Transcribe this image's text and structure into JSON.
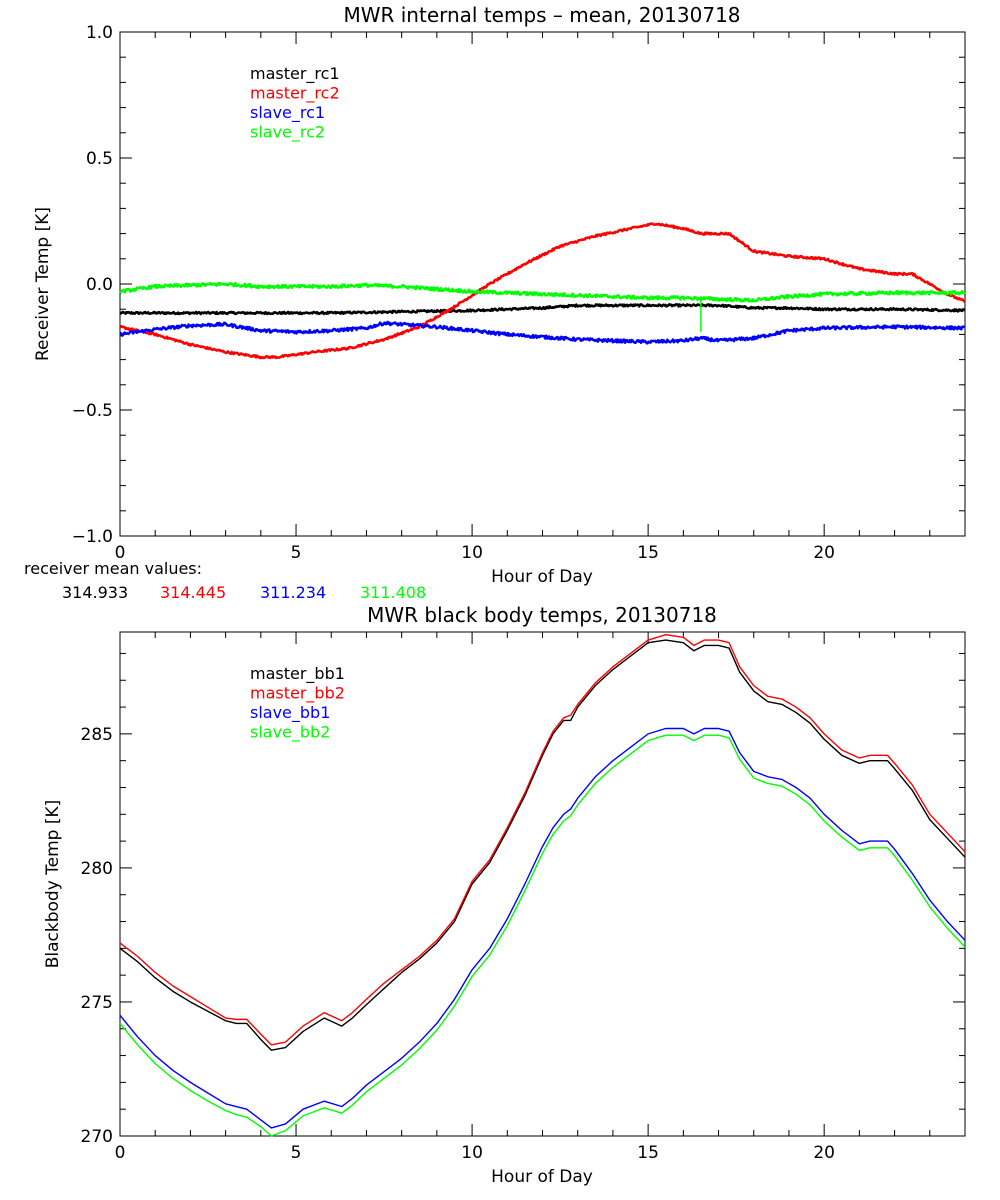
{
  "colors": {
    "black": "#000000",
    "red": "#ff0000",
    "blue": "#0000ff",
    "green": "#00ff00"
  },
  "chart_data": [
    {
      "type": "line",
      "title": "MWR internal temps – mean, 20130718",
      "xlabel": "Hour of Day",
      "ylabel": "Receiver Temp [K]",
      "xlim": [
        0,
        24
      ],
      "ylim": [
        -1.0,
        1.0
      ],
      "xticks": [
        0,
        5,
        10,
        15,
        20
      ],
      "yticks": [
        -1.0,
        -0.5,
        0.0,
        0.5,
        1.0
      ],
      "ytick_labels": [
        "−1.0",
        "−0.5",
        "0.0",
        "0.5",
        "1.0"
      ],
      "grid": false,
      "legend_position": "top-left",
      "series": [
        {
          "name": "master_rc1",
          "color": "#000000",
          "noise": 0.004,
          "x": [
            0,
            2,
            4,
            6,
            8,
            10,
            12,
            13,
            14,
            15,
            16,
            17,
            18,
            19,
            20,
            22,
            24
          ],
          "y": [
            -0.115,
            -0.115,
            -0.115,
            -0.115,
            -0.11,
            -0.105,
            -0.095,
            -0.085,
            -0.085,
            -0.085,
            -0.085,
            -0.085,
            -0.095,
            -0.095,
            -0.1,
            -0.1,
            -0.105
          ]
        },
        {
          "name": "master_rc2",
          "color": "#ff0000",
          "noise": 0.004,
          "x": [
            0,
            1,
            2,
            3,
            4,
            4.5,
            5.5,
            6.5,
            7.5,
            8.5,
            9.5,
            10.5,
            11.5,
            12.5,
            13.5,
            14.5,
            15.2,
            16,
            16.5,
            17.3,
            18,
            19,
            20,
            21,
            22,
            22.5,
            23.5,
            24
          ],
          "y": [
            -0.17,
            -0.2,
            -0.24,
            -0.27,
            -0.29,
            -0.29,
            -0.27,
            -0.255,
            -0.22,
            -0.17,
            -0.09,
            0.0,
            0.08,
            0.15,
            0.19,
            0.22,
            0.24,
            0.22,
            0.2,
            0.2,
            0.13,
            0.11,
            0.1,
            0.06,
            0.04,
            0.04,
            -0.04,
            -0.07
          ]
        },
        {
          "name": "slave_rc1",
          "color": "#0000ff",
          "noise": 0.006,
          "x": [
            0,
            1,
            2,
            3,
            4,
            5,
            6,
            7,
            7.5,
            8,
            9,
            10,
            11,
            12,
            13,
            14,
            15,
            16,
            16.5,
            17,
            18,
            19,
            20,
            22,
            24
          ],
          "y": [
            -0.2,
            -0.18,
            -0.165,
            -0.16,
            -0.185,
            -0.19,
            -0.185,
            -0.175,
            -0.155,
            -0.16,
            -0.17,
            -0.185,
            -0.2,
            -0.21,
            -0.22,
            -0.225,
            -0.23,
            -0.225,
            -0.215,
            -0.225,
            -0.215,
            -0.185,
            -0.175,
            -0.17,
            -0.175
          ]
        },
        {
          "name": "slave_rc2",
          "color": "#00ff00",
          "noise": 0.006,
          "x": [
            0,
            1,
            2,
            3,
            4,
            5,
            6,
            7,
            8,
            9,
            10,
            11,
            12,
            13,
            14,
            15,
            16,
            17,
            18,
            19,
            20,
            22,
            24
          ],
          "y": [
            -0.03,
            -0.01,
            -0.005,
            0.0,
            -0.01,
            -0.01,
            -0.01,
            -0.005,
            -0.01,
            -0.02,
            -0.03,
            -0.035,
            -0.04,
            -0.045,
            -0.05,
            -0.055,
            -0.055,
            -0.06,
            -0.065,
            -0.05,
            -0.04,
            -0.035,
            -0.035
          ]
        }
      ],
      "spike": {
        "series": "slave_rc2",
        "x": 16.5,
        "y_from": -0.055,
        "y_to": -0.19
      },
      "annotation": {
        "label": "receiver mean values:",
        "values": [
          {
            "text": "314.933",
            "color": "#000000"
          },
          {
            "text": "314.445",
            "color": "#ff0000"
          },
          {
            "text": "311.234",
            "color": "#0000ff"
          },
          {
            "text": "311.408",
            "color": "#00ff00"
          }
        ]
      }
    },
    {
      "type": "line",
      "title": "MWR black body temps, 20130718",
      "xlabel": "Hour of Day",
      "ylabel": "Blackbody Temp [K]",
      "xlim": [
        0,
        24
      ],
      "ylim": [
        270,
        288.8
      ],
      "xticks": [
        0,
        5,
        10,
        15,
        20
      ],
      "yticks": [
        270,
        275,
        280,
        285
      ],
      "ytick_labels": [
        "270",
        "275",
        "280",
        "285"
      ],
      "grid": false,
      "legend_position": "top-left",
      "series": [
        {
          "name": "master_bb1",
          "color": "#000000",
          "noise": 0,
          "x": [
            0,
            0.5,
            1,
            1.5,
            2,
            2.5,
            3,
            3.3,
            3.6,
            4.0,
            4.3,
            4.7,
            5.2,
            5.8,
            6.3,
            6.6,
            7.0,
            7.5,
            8.0,
            8.5,
            9.0,
            9.5,
            10.0,
            10.5,
            11.0,
            11.5,
            12.0,
            12.3,
            12.6,
            12.8,
            13.0,
            13.5,
            14.0,
            14.5,
            15.0,
            15.5,
            16.0,
            16.3,
            16.6,
            17.0,
            17.3,
            17.6,
            18.0,
            18.4,
            18.8,
            19.2,
            19.6,
            20.0,
            20.5,
            21.0,
            21.3,
            21.8,
            22.0,
            22.5,
            23.0,
            23.5,
            24.0
          ],
          "y": [
            277.0,
            276.5,
            275.9,
            275.4,
            275.0,
            274.65,
            274.3,
            274.2,
            274.2,
            273.6,
            273.2,
            273.3,
            273.9,
            274.4,
            274.1,
            274.4,
            274.9,
            275.5,
            276.1,
            276.6,
            277.2,
            278.0,
            279.4,
            280.2,
            281.4,
            282.7,
            284.2,
            285.0,
            285.5,
            285.5,
            286.0,
            286.8,
            287.4,
            287.9,
            288.4,
            288.5,
            288.4,
            288.1,
            288.3,
            288.3,
            288.2,
            287.3,
            286.6,
            286.2,
            286.1,
            285.8,
            285.4,
            284.8,
            284.2,
            283.9,
            284.0,
            284.0,
            283.7,
            282.9,
            281.8,
            281.1,
            280.4
          ]
        },
        {
          "name": "master_bb2",
          "color": "#ff0000",
          "noise": 0,
          "x": [
            0,
            0.5,
            1,
            1.5,
            2,
            2.5,
            3,
            3.3,
            3.6,
            4.0,
            4.3,
            4.7,
            5.2,
            5.8,
            6.3,
            6.6,
            7.0,
            7.5,
            8.0,
            8.5,
            9.0,
            9.5,
            10.0,
            10.5,
            11.0,
            11.5,
            12.0,
            12.3,
            12.6,
            12.8,
            13.0,
            13.5,
            14.0,
            14.5,
            15.0,
            15.5,
            16.0,
            16.3,
            16.6,
            17.0,
            17.3,
            17.6,
            18.0,
            18.4,
            18.8,
            19.2,
            19.6,
            20.0,
            20.5,
            21.0,
            21.3,
            21.8,
            22.0,
            22.5,
            23.0,
            23.5,
            24.0
          ],
          "y": [
            277.2,
            276.7,
            276.1,
            275.6,
            275.2,
            274.8,
            274.4,
            274.35,
            274.35,
            273.8,
            273.4,
            273.5,
            274.1,
            274.6,
            274.3,
            274.6,
            275.1,
            275.7,
            276.2,
            276.7,
            277.3,
            278.1,
            279.5,
            280.3,
            281.5,
            282.8,
            284.3,
            285.1,
            285.6,
            285.7,
            286.1,
            286.9,
            287.5,
            288.0,
            288.5,
            288.7,
            288.6,
            288.3,
            288.5,
            288.5,
            288.4,
            287.5,
            286.8,
            286.4,
            286.3,
            286.0,
            285.6,
            285.0,
            284.4,
            284.1,
            284.2,
            284.2,
            283.9,
            283.1,
            282.0,
            281.3,
            280.6
          ]
        },
        {
          "name": "slave_bb1",
          "color": "#0000ff",
          "noise": 0,
          "x": [
            0,
            0.5,
            1,
            1.5,
            2,
            2.5,
            3,
            3.3,
            3.6,
            4.0,
            4.3,
            4.7,
            5.2,
            5.8,
            6.3,
            6.6,
            7.0,
            7.5,
            8.0,
            8.5,
            9.0,
            9.5,
            10.0,
            10.5,
            11.0,
            11.5,
            12.0,
            12.3,
            12.6,
            12.8,
            13.0,
            13.5,
            14.0,
            14.5,
            15.0,
            15.5,
            16.0,
            16.3,
            16.6,
            17.0,
            17.3,
            17.6,
            18.0,
            18.4,
            18.8,
            19.2,
            19.6,
            20.0,
            20.5,
            21.0,
            21.3,
            21.8,
            22.0,
            22.5,
            23.0,
            23.5,
            24.0
          ],
          "y": [
            274.5,
            273.7,
            273.0,
            272.45,
            272.0,
            271.6,
            271.2,
            271.1,
            271.0,
            270.6,
            270.3,
            270.45,
            271.0,
            271.3,
            271.1,
            271.4,
            271.9,
            272.4,
            272.9,
            273.5,
            274.2,
            275.1,
            276.2,
            277.0,
            278.1,
            279.4,
            280.8,
            281.5,
            282.0,
            282.2,
            282.6,
            283.4,
            284.0,
            284.5,
            285.0,
            285.2,
            285.2,
            285.0,
            285.2,
            285.2,
            285.1,
            284.3,
            283.6,
            283.4,
            283.3,
            283.0,
            282.6,
            282.0,
            281.4,
            280.9,
            281.0,
            281.0,
            280.7,
            279.8,
            278.8,
            278.0,
            277.3
          ]
        },
        {
          "name": "slave_bb2",
          "color": "#00ff00",
          "noise": 0,
          "x": [
            0,
            0.5,
            1,
            1.5,
            2,
            2.5,
            3,
            3.3,
            3.6,
            4.0,
            4.3,
            4.7,
            5.2,
            5.8,
            6.3,
            6.6,
            7.0,
            7.5,
            8.0,
            8.5,
            9.0,
            9.5,
            10.0,
            10.5,
            11.0,
            11.5,
            12.0,
            12.3,
            12.6,
            12.8,
            13.0,
            13.5,
            14.0,
            14.5,
            15.0,
            15.5,
            16.0,
            16.3,
            16.6,
            17.0,
            17.3,
            17.6,
            18.0,
            18.4,
            18.8,
            19.2,
            19.6,
            20.0,
            20.5,
            21.0,
            21.3,
            21.8,
            22.0,
            22.5,
            23.0,
            23.5,
            24.0
          ],
          "y": [
            274.2,
            273.4,
            272.7,
            272.15,
            271.7,
            271.3,
            270.95,
            270.8,
            270.7,
            270.35,
            270.0,
            270.2,
            270.75,
            271.05,
            270.85,
            271.15,
            271.65,
            272.15,
            272.65,
            273.25,
            273.95,
            274.85,
            275.95,
            276.75,
            277.85,
            279.15,
            280.55,
            281.25,
            281.75,
            281.95,
            282.35,
            283.15,
            283.75,
            284.25,
            284.75,
            284.95,
            284.95,
            284.75,
            284.95,
            284.95,
            284.85,
            284.05,
            283.35,
            283.15,
            283.05,
            282.75,
            282.35,
            281.75,
            281.15,
            280.65,
            280.75,
            280.75,
            280.45,
            279.55,
            278.55,
            277.75,
            277.05
          ]
        }
      ]
    }
  ]
}
